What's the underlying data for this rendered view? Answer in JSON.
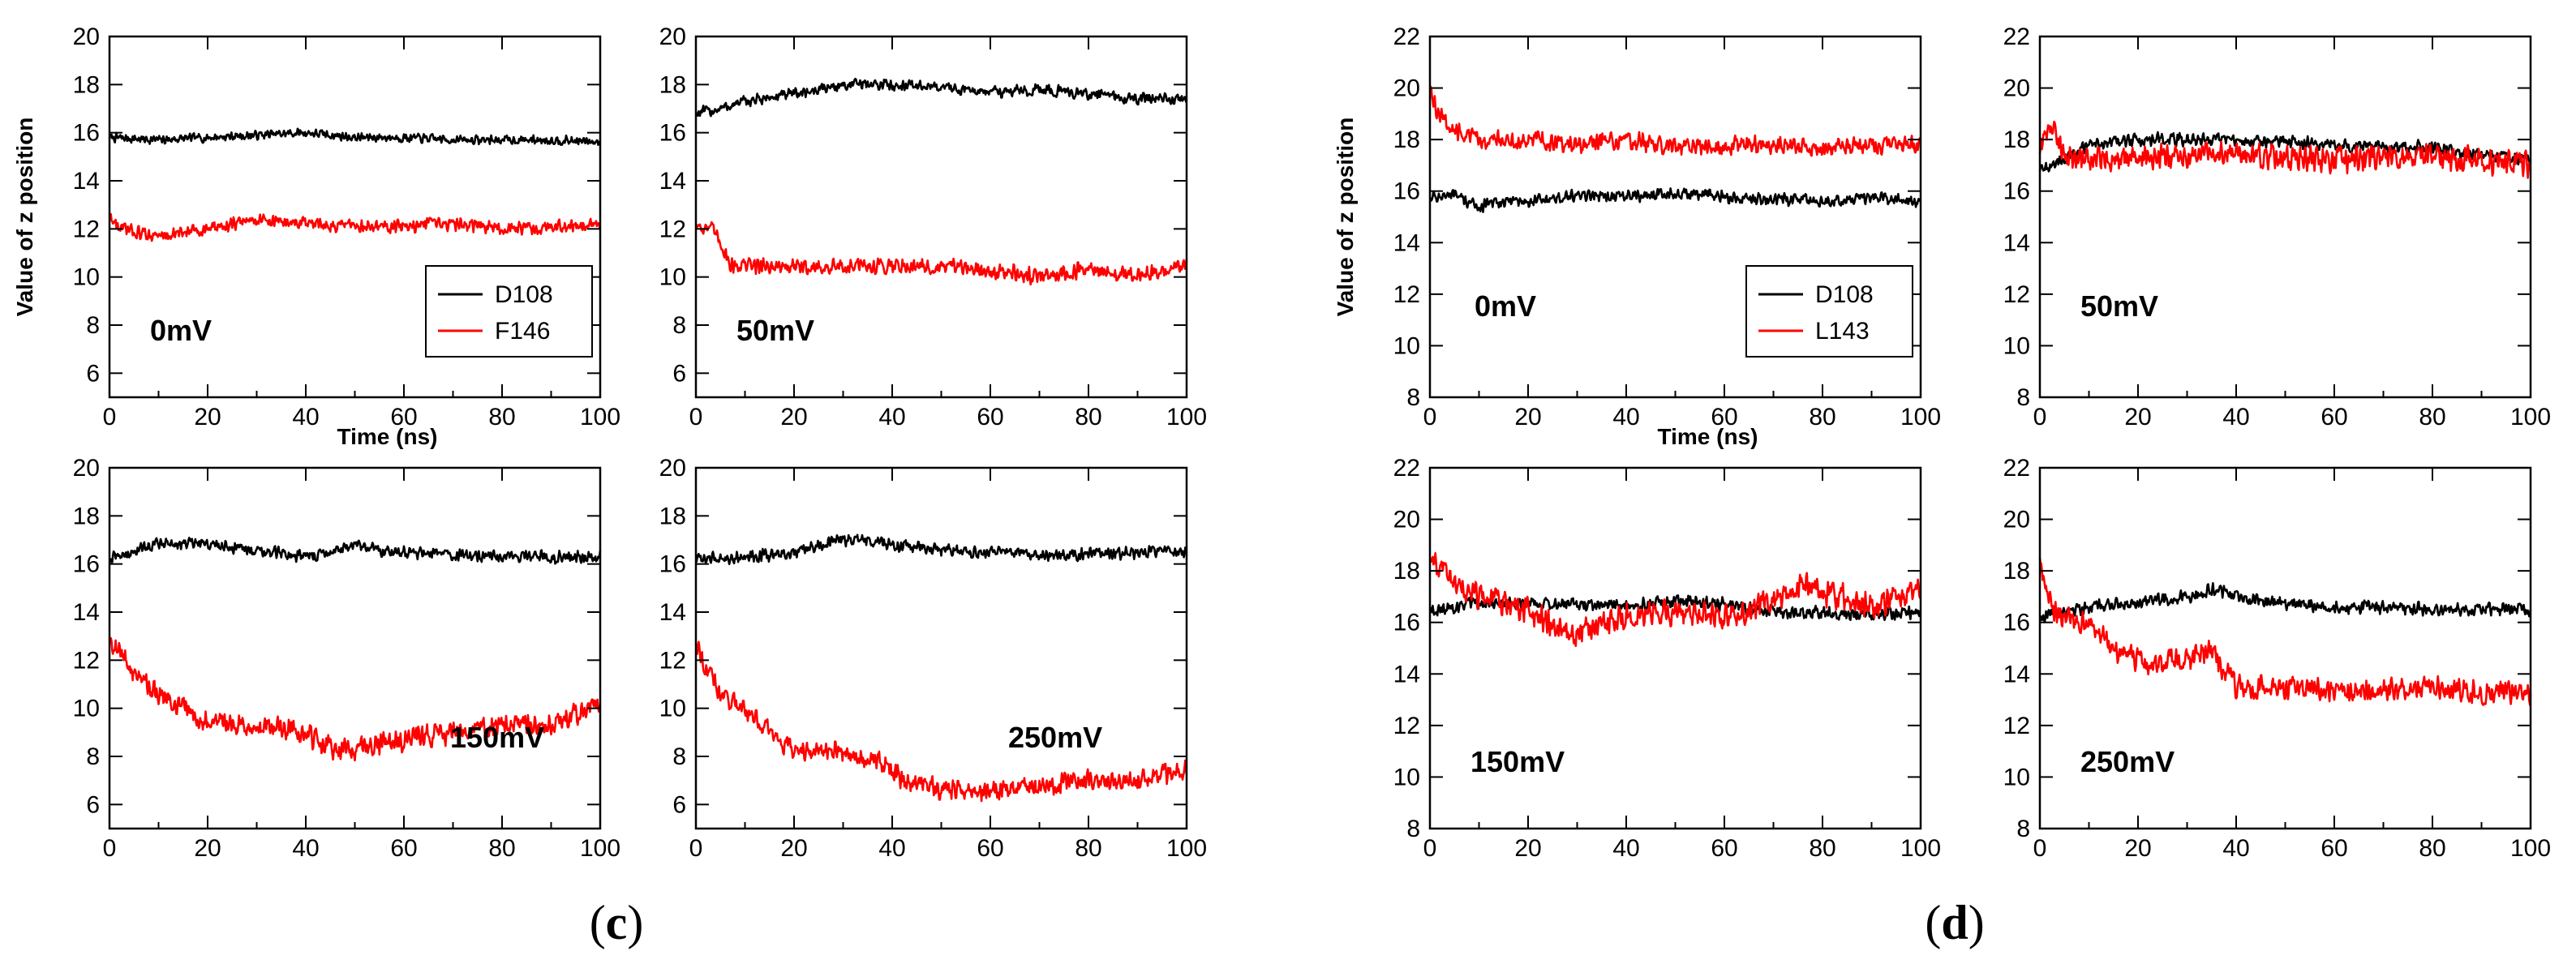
{
  "figure": {
    "panel_labels": [
      {
        "open": "(",
        "letter": "c",
        "close": ")"
      },
      {
        "open": "(",
        "letter": "d",
        "close": ")"
      }
    ]
  },
  "chart_data": [
    {
      "type": "line",
      "group": "c",
      "voltage": "0mV",
      "xlabel": "Time (ns)",
      "ylabel": "Value of z position",
      "xlim": [
        0,
        100
      ],
      "ylim": [
        5,
        20
      ],
      "xticks": [
        0,
        20,
        40,
        60,
        80,
        100
      ],
      "yticks": [
        6,
        8,
        10,
        12,
        14,
        16,
        18,
        20
      ],
      "legend": {
        "placement": "bottom-right",
        "entries": [
          "D108",
          "F146"
        ]
      },
      "series": [
        {
          "name": "D108",
          "color": "#000000",
          "noise": 0.22,
          "x": [
            0,
            10,
            20,
            30,
            40,
            50,
            60,
            70,
            80,
            90,
            100
          ],
          "values": [
            15.8,
            15.7,
            15.8,
            15.9,
            16.0,
            15.8,
            15.8,
            15.7,
            15.7,
            15.7,
            15.6
          ]
        },
        {
          "name": "F146",
          "color": "#ff0000",
          "noise": 0.32,
          "x": [
            0,
            2,
            10,
            20,
            30,
            40,
            50,
            60,
            70,
            80,
            90,
            100
          ],
          "values": [
            12.5,
            12.0,
            11.7,
            12.0,
            12.4,
            12.2,
            12.1,
            12.1,
            12.2,
            12.0,
            12.1,
            12.2
          ]
        }
      ]
    },
    {
      "type": "line",
      "group": "c",
      "voltage": "50mV",
      "xlabel": "",
      "ylabel": "",
      "xlim": [
        0,
        100
      ],
      "ylim": [
        5,
        20
      ],
      "xticks": [
        0,
        20,
        40,
        60,
        80,
        100
      ],
      "yticks": [
        6,
        8,
        10,
        12,
        14,
        16,
        18,
        20
      ],
      "legend": null,
      "series": [
        {
          "name": "D108",
          "color": "#000000",
          "noise": 0.28,
          "x": [
            0,
            5,
            10,
            20,
            30,
            40,
            50,
            60,
            70,
            80,
            90,
            100
          ],
          "values": [
            16.8,
            17.0,
            17.3,
            17.6,
            18.0,
            18.0,
            17.9,
            17.7,
            17.8,
            17.6,
            17.4,
            17.4
          ]
        },
        {
          "name": "F146",
          "color": "#ff0000",
          "noise": 0.4,
          "x": [
            0,
            3,
            5,
            7,
            10,
            20,
            30,
            40,
            50,
            60,
            70,
            80,
            90,
            100
          ],
          "values": [
            12.2,
            12.0,
            11.5,
            10.5,
            10.5,
            10.4,
            10.4,
            10.5,
            10.4,
            10.3,
            10.0,
            10.3,
            10.0,
            10.5
          ]
        }
      ]
    },
    {
      "type": "line",
      "group": "c",
      "voltage": "150mV",
      "xlabel": "",
      "ylabel": "",
      "xlim": [
        0,
        100
      ],
      "ylim": [
        5,
        20
      ],
      "xticks": [
        0,
        20,
        40,
        60,
        80,
        100
      ],
      "yticks": [
        6,
        8,
        10,
        12,
        14,
        16,
        18,
        20
      ],
      "legend": null,
      "series": [
        {
          "name": "D108",
          "color": "#000000",
          "noise": 0.3,
          "x": [
            0,
            5,
            10,
            20,
            30,
            40,
            50,
            60,
            70,
            80,
            90,
            100
          ],
          "values": [
            16.2,
            16.5,
            16.9,
            16.8,
            16.6,
            16.3,
            16.7,
            16.5,
            16.4,
            16.3,
            16.3,
            16.3
          ]
        },
        {
          "name": "F146",
          "color": "#ff0000",
          "noise": 0.55,
          "x": [
            0,
            2,
            5,
            10,
            15,
            20,
            30,
            40,
            45,
            50,
            60,
            70,
            80,
            90,
            95,
            100
          ],
          "values": [
            13.0,
            12.3,
            11.5,
            10.5,
            10.0,
            9.5,
            9.3,
            9.0,
            8.3,
            8.3,
            8.7,
            9.0,
            9.3,
            9.3,
            9.8,
            10.3
          ]
        }
      ]
    },
    {
      "type": "line",
      "group": "c",
      "voltage": "250mV",
      "xlabel": "",
      "ylabel": "",
      "xlim": [
        0,
        100
      ],
      "ylim": [
        5,
        20
      ],
      "xticks": [
        0,
        20,
        40,
        60,
        80,
        100
      ],
      "yticks": [
        6,
        8,
        10,
        12,
        14,
        16,
        18,
        20
      ],
      "legend": null,
      "series": [
        {
          "name": "D108",
          "color": "#000000",
          "noise": 0.3,
          "x": [
            0,
            10,
            20,
            25,
            30,
            35,
            40,
            50,
            60,
            70,
            80,
            90,
            100
          ],
          "values": [
            16.2,
            16.3,
            16.4,
            16.8,
            17.0,
            17.0,
            16.8,
            16.6,
            16.5,
            16.4,
            16.4,
            16.5,
            16.5
          ]
        },
        {
          "name": "F146",
          "color": "#ff0000",
          "noise": 0.5,
          "x": [
            0,
            2,
            5,
            10,
            15,
            20,
            30,
            38,
            40,
            42,
            50,
            60,
            70,
            80,
            90,
            100
          ],
          "values": [
            12.8,
            11.8,
            10.5,
            10.0,
            9.0,
            8.2,
            8.2,
            7.8,
            7.4,
            7.0,
            6.6,
            6.6,
            6.8,
            7.0,
            7.0,
            7.4
          ]
        }
      ]
    },
    {
      "type": "line",
      "group": "d",
      "voltage": "0mV",
      "xlabel": "Time (ns)",
      "ylabel": "Value of z position",
      "xlim": [
        0,
        100
      ],
      "ylim": [
        8,
        22
      ],
      "xticks": [
        0,
        20,
        40,
        60,
        80,
        100
      ],
      "yticks": [
        8,
        10,
        12,
        14,
        16,
        18,
        20,
        22
      ],
      "legend": {
        "placement": "bottom-right",
        "entries": [
          "D108",
          "L143"
        ]
      },
      "series": [
        {
          "name": "D108",
          "color": "#000000",
          "noise": 0.28,
          "x": [
            0,
            5,
            10,
            15,
            20,
            30,
            40,
            50,
            60,
            70,
            80,
            90,
            100
          ],
          "values": [
            15.8,
            15.8,
            15.4,
            15.6,
            15.6,
            15.8,
            15.8,
            15.9,
            15.8,
            15.7,
            15.6,
            15.7,
            15.6
          ]
        },
        {
          "name": "L143",
          "color": "#ff0000",
          "noise": 0.42,
          "x": [
            0,
            1,
            3,
            5,
            10,
            20,
            30,
            40,
            50,
            60,
            70,
            80,
            90,
            100
          ],
          "values": [
            20.0,
            19.3,
            18.7,
            18.3,
            18.0,
            18.0,
            17.8,
            18.0,
            17.7,
            17.8,
            17.8,
            17.7,
            17.8,
            17.8
          ]
        }
      ]
    },
    {
      "type": "line",
      "group": "d",
      "voltage": "50mV",
      "xlabel": "",
      "ylabel": "",
      "xlim": [
        0,
        100
      ],
      "ylim": [
        8,
        22
      ],
      "xticks": [
        0,
        20,
        40,
        60,
        80,
        100
      ],
      "yticks": [
        8,
        10,
        12,
        14,
        16,
        18,
        20,
        22
      ],
      "legend": null,
      "series": [
        {
          "name": "D108",
          "color": "#000000",
          "noise": 0.3,
          "x": [
            0,
            5,
            10,
            20,
            30,
            40,
            50,
            60,
            70,
            80,
            90,
            100
          ],
          "values": [
            16.8,
            17.2,
            17.8,
            18.0,
            18.0,
            18.0,
            17.9,
            17.8,
            17.7,
            17.7,
            17.4,
            17.2
          ]
        },
        {
          "name": "L143",
          "color": "#ff0000",
          "noise": 0.6,
          "x": [
            0,
            2,
            4,
            6,
            10,
            20,
            30,
            40,
            50,
            60,
            70,
            80,
            90,
            100
          ],
          "values": [
            17.5,
            18.5,
            17.8,
            17.2,
            17.2,
            17.3,
            17.4,
            17.5,
            17.3,
            17.2,
            17.4,
            17.3,
            17.2,
            17.0
          ]
        }
      ]
    },
    {
      "type": "line",
      "group": "d",
      "voltage": "150mV",
      "xlabel": "",
      "ylabel": "",
      "xlim": [
        0,
        100
      ],
      "ylim": [
        8,
        22
      ],
      "xticks": [
        0,
        20,
        40,
        60,
        80,
        100
      ],
      "yticks": [
        8,
        10,
        12,
        14,
        16,
        18,
        20,
        22
      ],
      "legend": null,
      "series": [
        {
          "name": "D108",
          "color": "#000000",
          "noise": 0.3,
          "x": [
            0,
            10,
            20,
            30,
            40,
            50,
            60,
            70,
            80,
            90,
            100
          ],
          "values": [
            16.5,
            16.7,
            16.8,
            16.7,
            16.6,
            16.8,
            16.7,
            16.4,
            16.4,
            16.3,
            16.4
          ]
        },
        {
          "name": "L143",
          "color": "#ff0000",
          "noise": 0.6,
          "x": [
            0,
            2,
            5,
            10,
            20,
            25,
            30,
            35,
            40,
            50,
            60,
            70,
            75,
            80,
            90,
            100
          ],
          "values": [
            18.5,
            18.2,
            17.5,
            17.0,
            16.5,
            15.8,
            15.5,
            16.0,
            16.2,
            16.4,
            16.2,
            16.8,
            17.5,
            17.2,
            16.6,
            17.2
          ]
        }
      ]
    },
    {
      "type": "line",
      "group": "d",
      "voltage": "250mV",
      "xlabel": "",
      "ylabel": "",
      "xlim": [
        0,
        100
      ],
      "ylim": [
        8,
        22
      ],
      "xticks": [
        0,
        20,
        40,
        60,
        80,
        100
      ],
      "yticks": [
        8,
        10,
        12,
        14,
        16,
        18,
        20,
        22
      ],
      "legend": null,
      "series": [
        {
          "name": "D108",
          "color": "#000000",
          "noise": 0.3,
          "x": [
            0,
            5,
            10,
            20,
            30,
            35,
            40,
            50,
            60,
            70,
            80,
            90,
            100
          ],
          "values": [
            16.2,
            16.5,
            16.6,
            16.8,
            17.0,
            17.3,
            17.0,
            16.7,
            16.6,
            16.6,
            16.5,
            16.5,
            16.5
          ]
        },
        {
          "name": "L143",
          "color": "#ff0000",
          "noise": 0.55,
          "x": [
            0,
            1,
            3,
            5,
            10,
            15,
            20,
            30,
            35,
            38,
            40,
            50,
            60,
            70,
            80,
            90,
            100
          ],
          "values": [
            18.5,
            17.5,
            16.5,
            16.2,
            16.0,
            15.0,
            14.5,
            14.5,
            15.0,
            14.0,
            13.5,
            13.5,
            13.4,
            13.3,
            13.5,
            13.3,
            13.3
          ]
        }
      ]
    }
  ]
}
